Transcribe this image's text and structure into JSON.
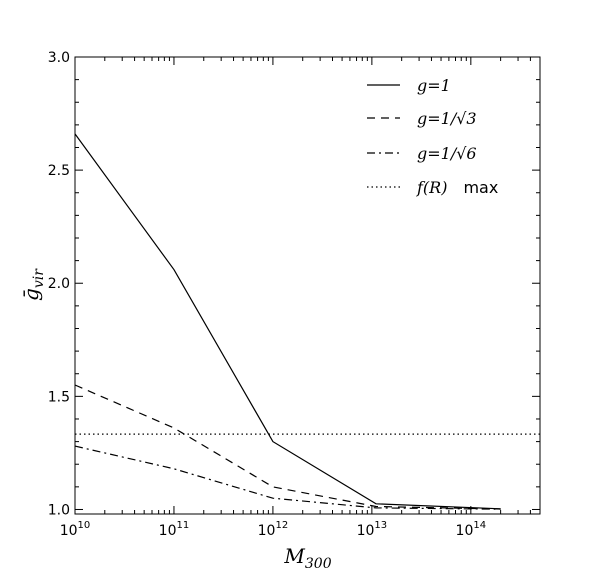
{
  "chart_data": {
    "type": "line",
    "xlabel": "M",
    "xlabel_sub": "300",
    "ylabel": "ḡ",
    "ylabel_sub": "vir",
    "xscale": "log",
    "xlim": [
      10000000000.0,
      500000000000000.0
    ],
    "ylim": [
      0.98,
      3.0
    ],
    "grid": false,
    "legend_position": "top-right",
    "x_ticks": [
      {
        "value": 10000000000.0,
        "base": "10",
        "exp": "10"
      },
      {
        "value": 100000000000.0,
        "base": "10",
        "exp": "11"
      },
      {
        "value": 1000000000000.0,
        "base": "10",
        "exp": "12"
      },
      {
        "value": 10000000000000.0,
        "base": "10",
        "exp": "13"
      },
      {
        "value": 100000000000000.0,
        "base": "10",
        "exp": "14"
      }
    ],
    "y_ticks": [
      {
        "value": 1.0,
        "label": "1.0"
      },
      {
        "value": 1.5,
        "label": "1.5"
      },
      {
        "value": 2.0,
        "label": "2.0"
      },
      {
        "value": 2.5,
        "label": "2.5"
      },
      {
        "value": 3.0,
        "label": "3.0"
      }
    ],
    "series": [
      {
        "name": "g=1",
        "style": "solid",
        "x": [
          10000000000.0,
          100000000000.0,
          1000000000000.0,
          11000000000000.0,
          200000000000000.0
        ],
        "y": [
          2.66,
          2.06,
          1.3,
          1.025,
          1.003
        ]
      },
      {
        "name": "g=1/√3",
        "style": "dashed",
        "x": [
          10000000000.0,
          100000000000.0,
          1000000000000.0,
          11000000000000.0,
          200000000000000.0
        ],
        "y": [
          1.55,
          1.36,
          1.1,
          1.013,
          1.002
        ]
      },
      {
        "name": "g=1/√6",
        "style": "dashdot",
        "x": [
          10000000000.0,
          100000000000.0,
          1000000000000.0,
          11000000000000.0,
          200000000000000.0
        ],
        "y": [
          1.28,
          1.18,
          1.05,
          1.007,
          1.001
        ]
      },
      {
        "name": "f(R)  max",
        "style": "dotted",
        "x": [
          10000000000.0,
          500000000000000.0
        ],
        "y": [
          1.333,
          1.333
        ]
      }
    ],
    "legend_entries": [
      {
        "text": "g=1",
        "upright_suffix": ""
      },
      {
        "text": "g=1/√3",
        "upright_suffix": ""
      },
      {
        "text": "g=1/√6",
        "upright_suffix": ""
      },
      {
        "text": "f(R)",
        "upright_suffix": "max"
      }
    ]
  }
}
